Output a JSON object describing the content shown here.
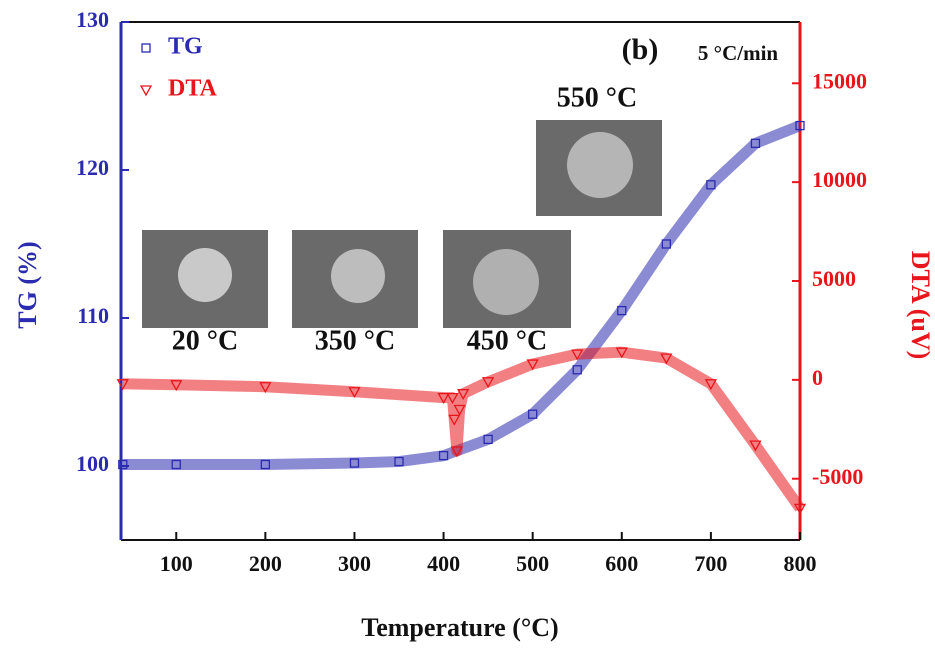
{
  "chart_data": {
    "type": "line",
    "x_label": "Temperature (°C)",
    "y_label": "TG (%)",
    "y2_label": "DTA (uV)",
    "xlim": [
      38,
      800
    ],
    "xticks": [
      100,
      200,
      300,
      400,
      500,
      600,
      700,
      800
    ],
    "ylim": [
      95,
      130
    ],
    "yticks": [
      100,
      110,
      120,
      130
    ],
    "y2lim": [
      -8100,
      18100
    ],
    "y2ticks": [
      -5000,
      0,
      5000,
      10000,
      15000
    ],
    "legend": "top-left",
    "series": [
      {
        "name": "TG",
        "color": "#2b2bb0",
        "marker": "square",
        "x": [
          40,
          100,
          200,
          300,
          350,
          400,
          450,
          500,
          550,
          600,
          650,
          700,
          750,
          800
        ],
        "values": [
          100.1,
          100.1,
          100.1,
          100.2,
          100.3,
          100.7,
          101.8,
          103.5,
          106.5,
          110.5,
          115,
          119,
          121.8,
          123
        ]
      },
      {
        "name": "DTA",
        "color": "#e8161c",
        "marker": "triangle-down",
        "axis": "y2",
        "x": [
          40,
          100,
          200,
          300,
          400,
          410,
          412,
          415,
          418,
          422,
          450,
          500,
          550,
          600,
          650,
          700,
          750,
          800
        ],
        "values": [
          -200,
          -250,
          -350,
          -600,
          -900,
          -900,
          -2000,
          -3600,
          -1500,
          -700,
          -100,
          800,
          1300,
          1400,
          1100,
          -200,
          -3300,
          -6500
        ]
      }
    ],
    "annotations": [
      "(b)",
      "5 °C/min",
      "20 °C",
      "350 °C",
      "450 °C",
      "550 °C"
    ]
  }
}
